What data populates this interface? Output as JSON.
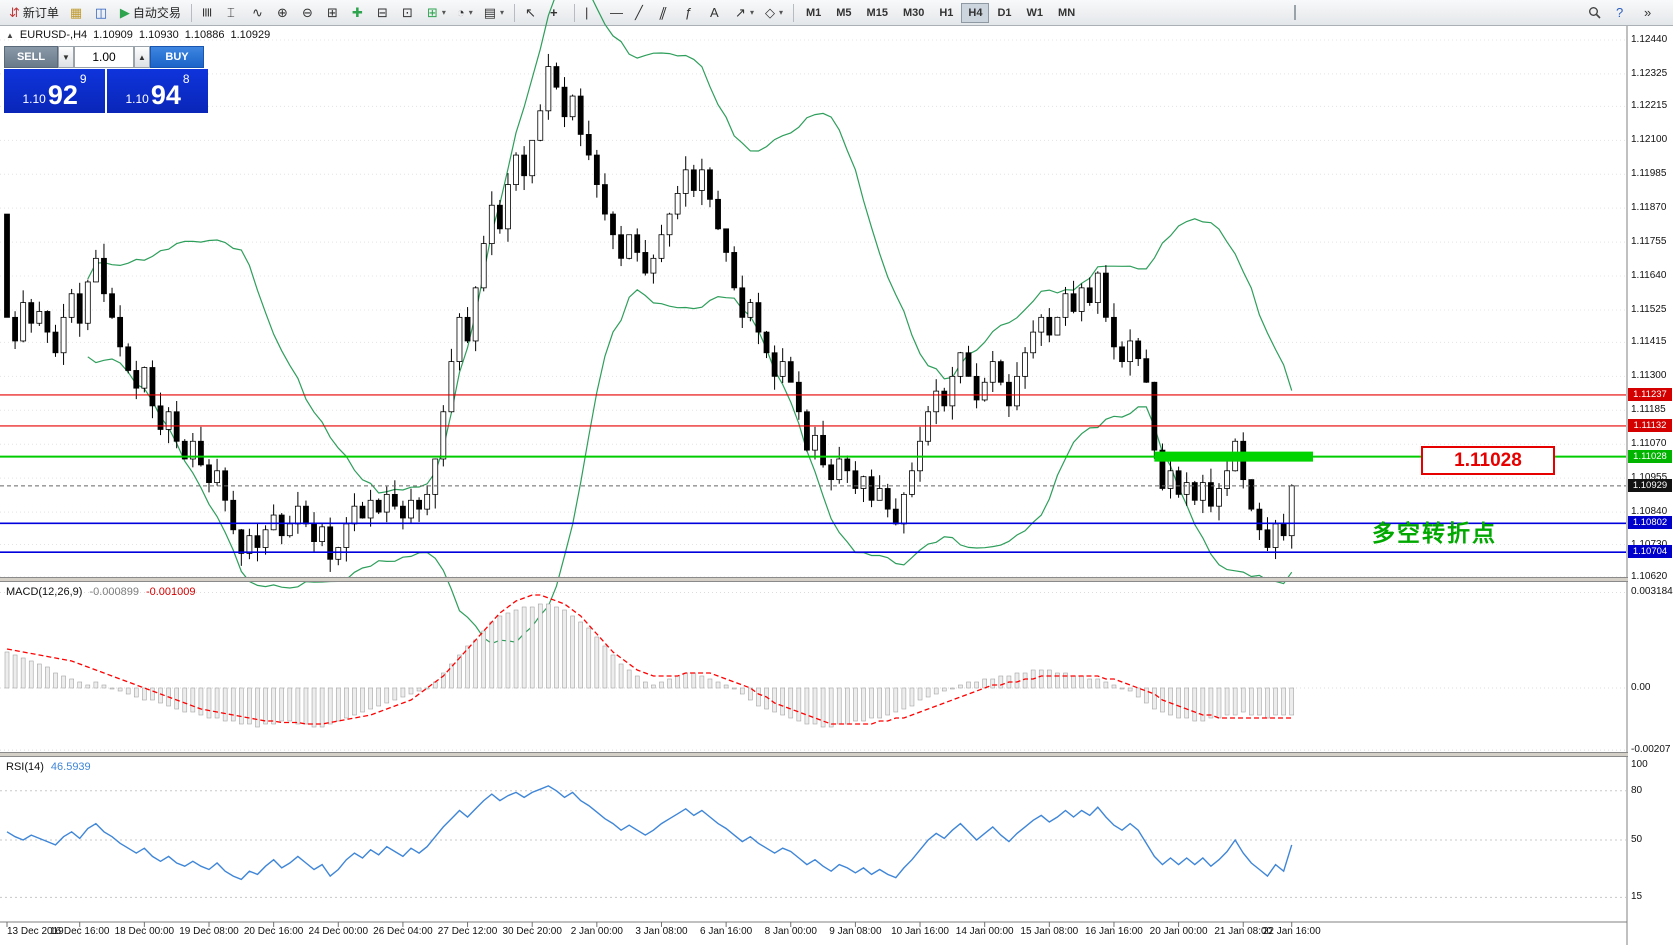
{
  "toolbar": {
    "new_order_label": "新订单",
    "autotrading_label": "自动交易",
    "timeframes": [
      "M1",
      "M5",
      "M15",
      "M30",
      "H1",
      "H4",
      "D1",
      "W1",
      "MN"
    ],
    "active_timeframe": "H4"
  },
  "icons": {
    "new_order": "⇵",
    "profiles": "▦",
    "market_watch": "◫",
    "autotrading": "▶",
    "bars": "≣",
    "candles": "⌶",
    "line_chart": "∿",
    "zoom_in": "⊕",
    "zoom_out": "⊖",
    "grid": "⊞",
    "indicators": "✚",
    "tile_h": "⊟",
    "tile_v": "⊡",
    "new_chart": "⊞",
    "period": "◔",
    "templates": "▤",
    "cursor": "↖",
    "crosshair": "+",
    "vline": "|",
    "hline": "—",
    "trendline": "╱",
    "channel": "∥",
    "fibonacci": "ƒ",
    "text_tool": "A",
    "arrow_tool": "↗",
    "shapes": "◇",
    "caret": "▾",
    "overflow": "»",
    "help": "?",
    "search": "⌕",
    "symbol_direction": "▲"
  },
  "symbol_bar": {
    "symbol": "EURUSD-,H4",
    "open": "1.10909",
    "high": "1.10930",
    "low": "1.10886",
    "close": "1.10929"
  },
  "trade_panel": {
    "sell_label": "SELL",
    "buy_label": "BUY",
    "volume": "1.00",
    "sell_price_small": "1.10",
    "sell_price_big": "92",
    "sell_price_sup": "9",
    "buy_price_small": "1.10",
    "buy_price_big": "94",
    "buy_price_sup": "8"
  },
  "annotations": {
    "price_box_label": "1.11028",
    "note_text": "多空转折点"
  },
  "macd": {
    "name": "MACD(12,26,9)",
    "value_main": "-0.000899",
    "value_signal": "-0.001009",
    "axis": [
      "0.003184",
      "0.00",
      "-0.00207"
    ]
  },
  "rsi": {
    "name": "RSI(14)",
    "value": "46.5939",
    "axis": [
      "100",
      "80",
      "50",
      "15"
    ]
  },
  "price_axis": {
    "tags": [
      {
        "text": "1.11237",
        "color": "#d40000"
      },
      {
        "text": "1.11132",
        "color": "#d40000"
      },
      {
        "text": "1.11028",
        "color": "#00b400"
      },
      {
        "text": "1.10929",
        "color": "#111111"
      },
      {
        "text": "1.10802",
        "color": "#0000cc"
      },
      {
        "text": "1.10704",
        "color": "#0000cc"
      }
    ]
  },
  "colors": {
    "panel_blue": "#0b2fd4",
    "sell_button": "#73828f",
    "buy_button": "#2470d2",
    "level_red": "#e60000",
    "level_green": "#00cc00",
    "level_blue": "#0000dd",
    "current_price": "#666666",
    "band_green": "#2e9e5b",
    "rsi_line": "#3f86d8",
    "macd_signal": "#ff0000",
    "highlight_green": "#00d400",
    "annotation_red": "#e60000",
    "note_green": "#00a800"
  },
  "chart_data": {
    "type": "candlestick",
    "symbol": "EURUSD-",
    "timeframe": "H4",
    "price_axis_ticks": [
      "1.12440",
      "1.12325",
      "1.12215",
      "1.12100",
      "1.11985",
      "1.11870",
      "1.11755",
      "1.11640",
      "1.11525",
      "1.11415",
      "1.11300",
      "1.11185",
      "1.11070",
      "1.10955",
      "1.10840",
      "1.10730",
      "1.10620"
    ],
    "levels": {
      "red": [
        1.11237,
        1.11132
      ],
      "green": 1.11028,
      "blue": [
        1.10802,
        1.10704
      ],
      "current": 1.10929
    },
    "highlight": {
      "price": 1.11028,
      "from_bar": 142
    },
    "open_first": 1.1185,
    "bollinger_period": 20,
    "bollinger_dev": 2,
    "closes": [
      1.115,
      1.1142,
      1.1155,
      1.1148,
      1.1152,
      1.1145,
      1.1138,
      1.115,
      1.1158,
      1.1148,
      1.1162,
      1.117,
      1.1158,
      1.115,
      1.114,
      1.1132,
      1.1126,
      1.1133,
      1.112,
      1.1112,
      1.1118,
      1.1108,
      1.1102,
      1.1108,
      1.11,
      1.1094,
      1.1098,
      1.1088,
      1.1078,
      1.107,
      1.1076,
      1.1072,
      1.1078,
      1.1083,
      1.1076,
      1.108,
      1.1086,
      1.108,
      1.1074,
      1.1079,
      1.1068,
      1.1072,
      1.108,
      1.1086,
      1.1082,
      1.1088,
      1.1084,
      1.109,
      1.1086,
      1.1082,
      1.1088,
      1.1085,
      1.109,
      1.1102,
      1.1118,
      1.1135,
      1.115,
      1.1142,
      1.116,
      1.1175,
      1.1188,
      1.118,
      1.1195,
      1.1205,
      1.1198,
      1.121,
      1.122,
      1.1235,
      1.1228,
      1.1218,
      1.1225,
      1.1212,
      1.1205,
      1.1195,
      1.1185,
      1.1178,
      1.117,
      1.1178,
      1.1172,
      1.1165,
      1.117,
      1.1178,
      1.1185,
      1.1192,
      1.12,
      1.1193,
      1.12,
      1.119,
      1.118,
      1.1172,
      1.116,
      1.115,
      1.1155,
      1.1145,
      1.1138,
      1.113,
      1.1135,
      1.1128,
      1.1118,
      1.1105,
      1.111,
      1.11,
      1.1095,
      1.1102,
      1.1098,
      1.1092,
      1.1096,
      1.1088,
      1.1092,
      1.1085,
      1.108,
      1.109,
      1.1098,
      1.1108,
      1.1118,
      1.1125,
      1.112,
      1.113,
      1.1138,
      1.113,
      1.1122,
      1.1128,
      1.1135,
      1.1128,
      1.112,
      1.113,
      1.1138,
      1.1145,
      1.115,
      1.1144,
      1.115,
      1.1158,
      1.1152,
      1.116,
      1.1155,
      1.1165,
      1.115,
      1.114,
      1.1135,
      1.1142,
      1.1136,
      1.1128,
      1.1105,
      1.1092,
      1.1098,
      1.109,
      1.1094,
      1.1088,
      1.1094,
      1.1086,
      1.1092,
      1.1098,
      1.1108,
      1.1095,
      1.1085,
      1.1078,
      1.1072,
      1.108,
      1.1076,
      1.10929
    ],
    "macd": {
      "axis_values": [
        0.003184,
        0,
        -0.00207
      ],
      "hist": [
        0.0012,
        0.0011,
        0.001,
        0.0009,
        0.0008,
        0.0007,
        0.0005,
        0.0004,
        0.0003,
        0.0002,
        0.0001,
        0.0002,
        0.0001,
        0.0,
        -0.0001,
        -0.0002,
        -0.0003,
        -0.0004,
        -0.0004,
        -0.0005,
        -0.0006,
        -0.0007,
        -0.0008,
        -0.0008,
        -0.0009,
        -0.001,
        -0.001,
        -0.0011,
        -0.0011,
        -0.0012,
        -0.0012,
        -0.0013,
        -0.0012,
        -0.0012,
        -0.0011,
        -0.0011,
        -0.0012,
        -0.0012,
        -0.0013,
        -0.0013,
        -0.0012,
        -0.0011,
        -0.001,
        -0.0009,
        -0.0008,
        -0.0007,
        -0.0006,
        -0.0005,
        -0.0004,
        -0.0003,
        -0.0002,
        -0.0001,
        0.0,
        0.0002,
        0.0005,
        0.0008,
        0.0011,
        0.0014,
        0.0016,
        0.0019,
        0.0022,
        0.0024,
        0.0025,
        0.0026,
        0.0027,
        0.0027,
        0.0028,
        0.0028,
        0.0027,
        0.0026,
        0.0024,
        0.0022,
        0.002,
        0.0017,
        0.0014,
        0.0011,
        0.0008,
        0.0006,
        0.0004,
        0.0002,
        0.0001,
        0.0002,
        0.0003,
        0.0004,
        0.0005,
        0.0005,
        0.0004,
        0.0003,
        0.0002,
        0.0001,
        0.0,
        -0.0002,
        -0.0004,
        -0.0006,
        -0.0007,
        -0.0008,
        -0.0009,
        -0.001,
        -0.0011,
        -0.0012,
        -0.0012,
        -0.0013,
        -0.0013,
        -0.0012,
        -0.0012,
        -0.0011,
        -0.0011,
        -0.001,
        -0.001,
        -0.0009,
        -0.0008,
        -0.0007,
        -0.0006,
        -0.0004,
        -0.0003,
        -0.0002,
        -0.0001,
        0.0,
        0.0001,
        0.0002,
        0.0002,
        0.0003,
        0.0003,
        0.0004,
        0.0004,
        0.0005,
        0.0005,
        0.0006,
        0.0006,
        0.0006,
        0.0005,
        0.0005,
        0.0004,
        0.0004,
        0.0003,
        0.0003,
        0.0002,
        0.0001,
        0.0,
        -0.0001,
        -0.0003,
        -0.0005,
        -0.0007,
        -0.0008,
        -0.0009,
        -0.001,
        -0.001,
        -0.0011,
        -0.0011,
        -0.001,
        -0.001,
        -0.0009,
        -0.0009,
        -0.0008,
        -0.0009,
        -0.0009,
        -0.001,
        -0.0009,
        -0.0009,
        -0.0009
      ],
      "signal": [
        0.0013,
        0.00125,
        0.0012,
        0.00115,
        0.0011,
        0.00105,
        0.001,
        0.00095,
        0.0009,
        0.0008,
        0.0007,
        0.0006,
        0.0005,
        0.0004,
        0.0003,
        0.0002,
        0.0001,
        0.0,
        -0.0001,
        -0.0002,
        -0.0003,
        -0.0004,
        -0.0005,
        -0.0006,
        -0.0007,
        -0.00075,
        -0.0008,
        -0.00085,
        -0.0009,
        -0.00095,
        -0.001,
        -0.00105,
        -0.0011,
        -0.0011,
        -0.00115,
        -0.00115,
        -0.00115,
        -0.0012,
        -0.0012,
        -0.0012,
        -0.00115,
        -0.0011,
        -0.00105,
        -0.001,
        -0.00095,
        -0.0009,
        -0.0008,
        -0.0007,
        -0.0006,
        -0.0005,
        -0.0004,
        -0.0002,
        0.0,
        0.0002,
        0.0004,
        0.0007,
        0.001,
        0.0013,
        0.0016,
        0.0019,
        0.0022,
        0.0025,
        0.0027,
        0.0029,
        0.003,
        0.0031,
        0.0031,
        0.003,
        0.0029,
        0.0028,
        0.0026,
        0.0024,
        0.0021,
        0.0018,
        0.0015,
        0.0012,
        0.001,
        0.0008,
        0.0006,
        0.0005,
        0.0004,
        0.0004,
        0.0004,
        0.0004,
        0.0005,
        0.0005,
        0.0005,
        0.0005,
        0.0004,
        0.0003,
        0.0002,
        0.0001,
        0.0,
        -0.0002,
        -0.0003,
        -0.0005,
        -0.0006,
        -0.0007,
        -0.0008,
        -0.0009,
        -0.001,
        -0.0011,
        -0.0012,
        -0.0012,
        -0.0012,
        -0.0012,
        -0.0012,
        -0.0012,
        -0.0011,
        -0.0011,
        -0.001,
        -0.001,
        -0.0009,
        -0.0008,
        -0.0007,
        -0.0006,
        -0.0005,
        -0.0004,
        -0.0003,
        -0.0002,
        -0.0001,
        0.0,
        0.0001,
        0.0001,
        0.0002,
        0.0002,
        0.0003,
        0.0003,
        0.0004,
        0.0004,
        0.0004,
        0.0004,
        0.0004,
        0.0004,
        0.0004,
        0.0004,
        0.0003,
        0.0003,
        0.0002,
        0.0001,
        0.0,
        -0.0001,
        -0.0002,
        -0.0004,
        -0.0005,
        -0.0006,
        -0.0007,
        -0.0008,
        -0.0009,
        -0.0009,
        -0.001,
        -0.001,
        -0.001,
        -0.001,
        -0.001,
        -0.001,
        -0.001,
        -0.001,
        -0.001,
        -0.001
      ]
    },
    "rsi": {
      "levels": [
        80,
        50,
        15
      ],
      "values": [
        55,
        52,
        50,
        53,
        51,
        49,
        47,
        52,
        55,
        51,
        57,
        60,
        55,
        52,
        48,
        45,
        42,
        45,
        40,
        37,
        40,
        36,
        34,
        37,
        34,
        32,
        36,
        31,
        28,
        26,
        31,
        29,
        34,
        38,
        33,
        36,
        40,
        36,
        32,
        35,
        28,
        32,
        38,
        42,
        39,
        44,
        41,
        46,
        43,
        40,
        45,
        42,
        46,
        52,
        58,
        63,
        68,
        64,
        69,
        74,
        78,
        74,
        77,
        79,
        76,
        79,
        81,
        83,
        80,
        76,
        79,
        74,
        71,
        67,
        63,
        60,
        56,
        59,
        56,
        53,
        56,
        60,
        63,
        66,
        69,
        65,
        68,
        64,
        60,
        57,
        53,
        49,
        52,
        48,
        45,
        42,
        45,
        43,
        39,
        35,
        38,
        34,
        31,
        35,
        33,
        30,
        33,
        29,
        32,
        29,
        27,
        33,
        38,
        44,
        50,
        54,
        51,
        56,
        60,
        55,
        50,
        54,
        58,
        53,
        49,
        54,
        58,
        62,
        65,
        61,
        64,
        68,
        64,
        68,
        65,
        70,
        64,
        59,
        56,
        60,
        56,
        48,
        40,
        35,
        39,
        35,
        39,
        35,
        39,
        34,
        38,
        43,
        50,
        42,
        36,
        32,
        28,
        35,
        31,
        47
      ]
    },
    "time_labels": [
      "13 Dec 2019",
      "16 Dec 16:00",
      "18 Dec 00:00",
      "19 Dec 08:00",
      "20 Dec 16:00",
      "24 Dec 00:00",
      "26 Dec 04:00",
      "27 Dec 12:00",
      "30 Dec 20:00",
      "2 Jan 00:00",
      "3 Jan 08:00",
      "6 Jan 16:00",
      "8 Jan 00:00",
      "9 Jan 08:00",
      "10 Jan 16:00",
      "14 Jan 00:00",
      "15 Jan 08:00",
      "16 Jan 16:00",
      "20 Jan 00:00",
      "21 Jan 08:00",
      "22 Jan 16:00"
    ],
    "time_label_indices": [
      0,
      9,
      17,
      25,
      33,
      41,
      49,
      57,
      65,
      73,
      81,
      89,
      97,
      105,
      113,
      121,
      129,
      137,
      145,
      153,
      159
    ]
  }
}
